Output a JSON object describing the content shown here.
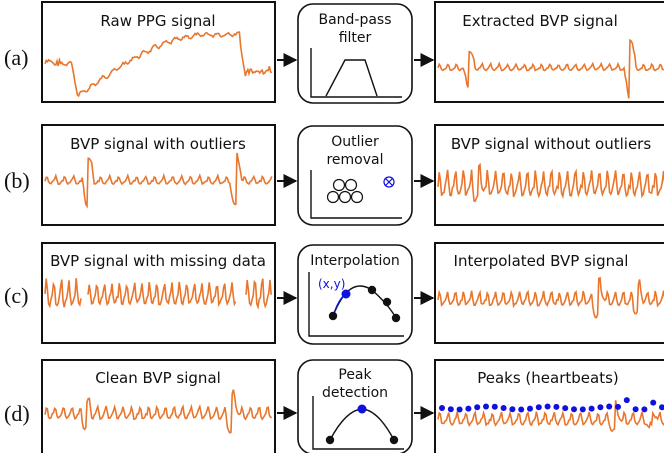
{
  "rows": [
    {
      "label": "(a)",
      "left_title": "Raw PPG signal",
      "process_lines": [
        "Band-pass",
        "filter"
      ],
      "process_icon": "band-pass-filter-icon",
      "right_title": "Extracted BVP signal"
    },
    {
      "label": "(b)",
      "left_title": "BVP signal with outliers",
      "process_lines": [
        "Outlier",
        "removal"
      ],
      "process_icon": "outlier-scatter-icon",
      "right_title": "BVP signal without outliers"
    },
    {
      "label": "(c)",
      "left_title": "BVP signal with missing data",
      "process_lines": [
        "Interpolation"
      ],
      "process_icon": "interpolation-curve-icon",
      "interp_label": "(x,y)",
      "right_title": "Interpolated BVP signal"
    },
    {
      "label": "(d)",
      "left_title": "Clean BVP signal",
      "process_lines": [
        "Peak",
        "detection"
      ],
      "process_icon": "peak-detection-icon",
      "right_title": "Peaks (heartbeats)"
    }
  ],
  "colors": {
    "signal": "#e8762d",
    "frame": "#111111",
    "marker": "#1010e0",
    "node": "#111111"
  }
}
